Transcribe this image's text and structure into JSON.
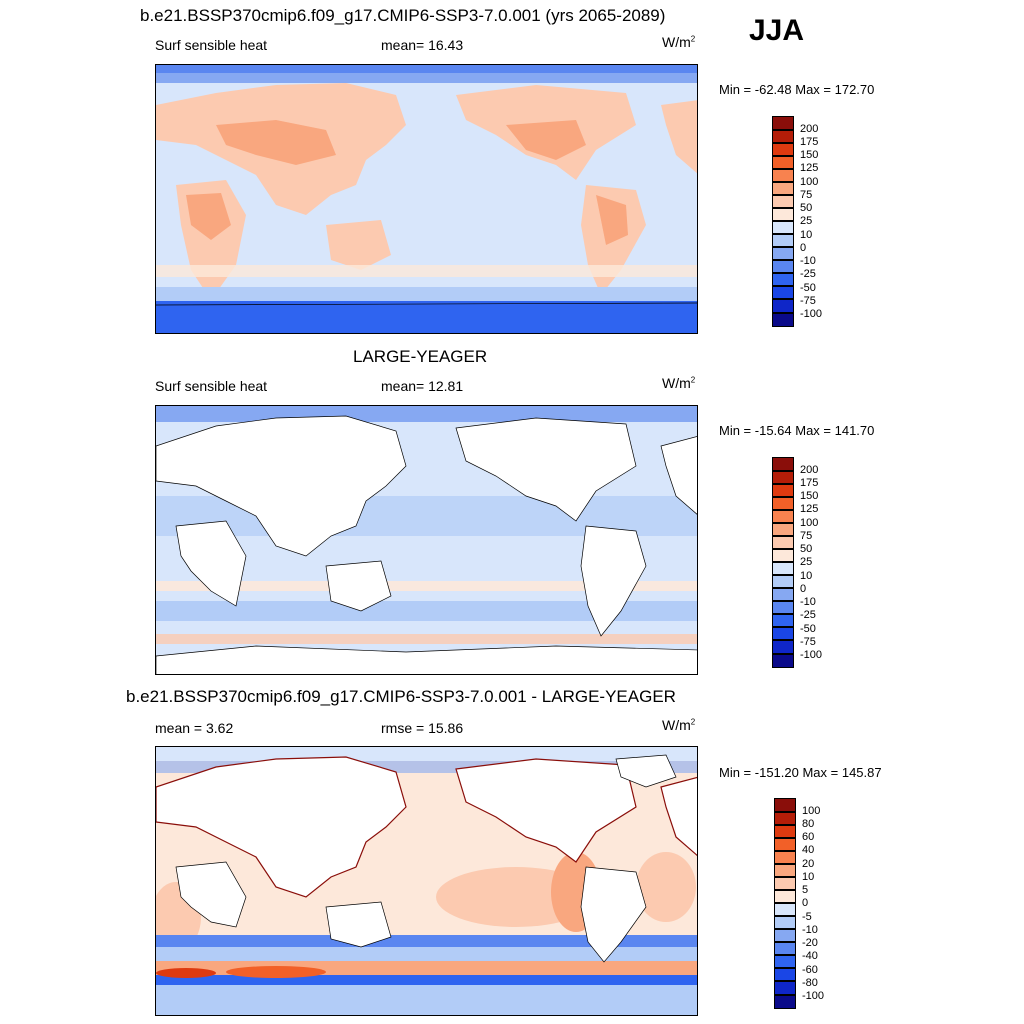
{
  "season": "JJA",
  "colors": {
    "abs": [
      "#0a0a8a",
      "#0f26c8",
      "#1a46e6",
      "#2f64f0",
      "#5a86f0",
      "#86a8f2",
      "#b2ccf7",
      "#d8e6fb",
      "#fde8da",
      "#fccab0",
      "#f9a77f",
      "#f8824f",
      "#f26028",
      "#de3a10",
      "#b41d08",
      "#8a0e0a"
    ],
    "diff": [
      "#0a0a8a",
      "#0f26c8",
      "#1a46e6",
      "#2f64f0",
      "#5a86f0",
      "#86a8f2",
      "#b2ccf7",
      "#d8e6fb",
      "#fde8da",
      "#fccab0",
      "#f9a77f",
      "#f8824f",
      "#f26028",
      "#de3a10",
      "#b41d08",
      "#8a0e0a"
    ],
    "land_blank": "#ffffff"
  },
  "panels": [
    {
      "title": "b.e21.BSSP370cmip6.f09_g17.CMIP6-SSP3-7.0.001 (yrs 2065-2089)",
      "left_label": "Surf sensible heat",
      "center_label": "mean=  16.43",
      "units_base": "W/m",
      "units_exp": "2",
      "minmax": "Min = -62.48 Max = 172.70",
      "colorbar": [
        "200",
        "175",
        "150",
        "125",
        "100",
        "75",
        "50",
        "25",
        "10",
        "0",
        "-10",
        "-25",
        "-50",
        "-75",
        "-100"
      ]
    },
    {
      "title": "LARGE-YEAGER",
      "left_label": "Surf sensible heat",
      "center_label": "mean=  12.81",
      "units_base": "W/m",
      "units_exp": "2",
      "minmax": "Min = -15.64 Max = 141.70",
      "colorbar": [
        "200",
        "175",
        "150",
        "125",
        "100",
        "75",
        "50",
        "25",
        "10",
        "0",
        "-10",
        "-25",
        "-50",
        "-75",
        "-100"
      ]
    },
    {
      "title": "b.e21.BSSP370cmip6.f09_g17.CMIP6-SSP3-7.0.001 - LARGE-YEAGER",
      "left_label": "mean =   3.62",
      "center_label": "rmse =  15.86",
      "units_base": "W/m",
      "units_exp": "2",
      "minmax": "Min = -151.20 Max = 145.87",
      "colorbar": [
        "100",
        "80",
        "60",
        "40",
        "20",
        "10",
        "5",
        "0",
        "-5",
        "-10",
        "-20",
        "-40",
        "-60",
        "-80",
        "-100"
      ]
    }
  ],
  "chart_data": [
    {
      "type": "heatmap",
      "title": "b.e21.BSSP370cmip6.f09_g17.CMIP6-SSP3-7.0.001 (yrs 2065-2089)",
      "variable": "Surf sensible heat",
      "units": "W/m2",
      "mean": 16.43,
      "min": -62.48,
      "max": 172.7,
      "levels": [
        -100,
        -75,
        -50,
        -25,
        -10,
        0,
        10,
        25,
        50,
        75,
        100,
        125,
        150,
        175,
        200
      ]
    },
    {
      "type": "heatmap",
      "title": "LARGE-YEAGER",
      "variable": "Surf sensible heat",
      "units": "W/m2",
      "mean": 12.81,
      "min": -15.64,
      "max": 141.7,
      "levels": [
        -100,
        -75,
        -50,
        -25,
        -10,
        0,
        10,
        25,
        50,
        75,
        100,
        125,
        150,
        175,
        200
      ]
    },
    {
      "type": "heatmap",
      "title": "b.e21.BSSP370cmip6.f09_g17.CMIP6-SSP3-7.0.001 - LARGE-YEAGER",
      "units": "W/m2",
      "mean": 3.62,
      "rmse": 15.86,
      "min": -151.2,
      "max": 145.87,
      "levels": [
        -100,
        -80,
        -60,
        -40,
        -20,
        -10,
        -5,
        0,
        5,
        10,
        20,
        40,
        60,
        80,
        100
      ]
    }
  ]
}
